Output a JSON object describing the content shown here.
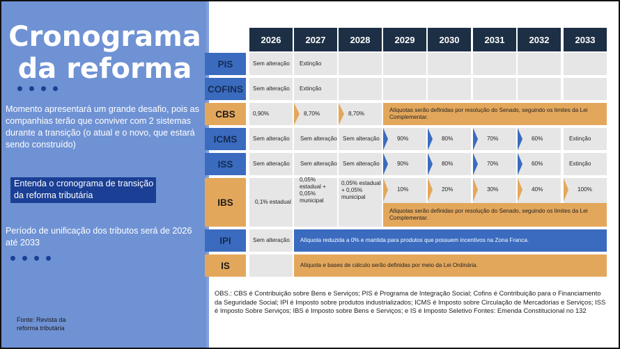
{
  "left_panel": {
    "title_line1": "Cronograma",
    "title_line2": "da reforma",
    "description": "Momento apresentará um grande desafio, pois as companhias terão que conviver com 2 sistemas durante a transição (o atual e o novo, que estará sendo construído)",
    "link_line1": "Entenda o cronograma de transição",
    "link_line2": "da reforma tributária",
    "period": "Período de unificação dos tributos será de 2026 até 2033",
    "source_line1": "Fonte: Revista da",
    "source_line2": "reforma tributária"
  },
  "table": {
    "years": [
      "2026",
      "2027",
      "2028",
      "2029",
      "2030",
      "2031",
      "2032",
      "2033"
    ],
    "rows": {
      "pis": {
        "label": "PIS",
        "c2026": "Sem alteração",
        "c2027": "Extinção"
      },
      "cofins": {
        "label": "COFINS",
        "c2026": "Sem alteração",
        "c2027": "Extinção"
      },
      "cbs": {
        "label": "CBS",
        "c2026": "0,90%",
        "c2027": "8,70%",
        "c2028": "8,70%",
        "band": "Alíquotas serão definidas por resolução do Senado, seguindo os limites da Lei Complementar."
      },
      "icms": {
        "label": "ICMS",
        "c2026": "Sem alteração",
        "c2027": "Sem alteração",
        "c2028": "Sem alteração",
        "c2029": "90%",
        "c2030": "80%",
        "c2031": "70%",
        "c2032": "60%",
        "c2033": "Extinção"
      },
      "iss": {
        "label": "ISS",
        "c2026": "Sem alteração",
        "c2027": "Sem alteração",
        "c2028": "Sem alteração",
        "c2029": "90%",
        "c2030": "80%",
        "c2031": "70%",
        "c2032": "60%",
        "c2033": "Extinção"
      },
      "ibs": {
        "label": "IBS",
        "c2026": "0,1% estadual",
        "c2027": "0,05% estadual + 0,05% municipal",
        "c2028": "0,05% estadual + 0,05% municipal",
        "c2029": "10%",
        "c2030": "20%",
        "c2031": "30%",
        "c2032": "40%",
        "c2033": "100%",
        "band": "Alíquotas serão definidas por resolução do Senado, seguindo os limites da Lei Complementar."
      },
      "ipi": {
        "label": "IPI",
        "c2026": "Sem alteração",
        "band": "Alíquota reduzida a 0% e mantida para produtos que possuem incentivos na Zona Franca."
      },
      "is": {
        "label": "IS",
        "band": "Alíquota e bases de cálculo serão definidas por meio da Lei Ordinária."
      }
    }
  },
  "obs": "OBS.: CBS é Contribuição sobre Bens e Serviços; PIS é Programa de Integração Social; Cofins é Contribuição para o Financiamento da Seguridade Social; IPI é Imposto sobre produtos industrializados; ICMS é Imposto sobre Circulação de Mercadorias e Serviços; ISS é Imposto Sobre Serviços; IBS é Imposto sobre Bens e Serviços; e IS é Imposto Seletivo Fontes: Emenda Constitucional no 132",
  "colors": {
    "navy": "#1c2f45",
    "blue": "#3a6bbf",
    "orange": "#e3a75c",
    "gray": "#e6e6e6",
    "panel": "#6f92d4"
  }
}
